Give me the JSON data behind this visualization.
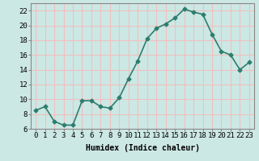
{
  "x": [
    0,
    1,
    2,
    3,
    4,
    5,
    6,
    7,
    8,
    9,
    10,
    11,
    12,
    13,
    14,
    15,
    16,
    17,
    18,
    19,
    20,
    21,
    22,
    23
  ],
  "y": [
    8.5,
    9.0,
    7.0,
    6.5,
    6.5,
    9.8,
    9.8,
    9.0,
    8.8,
    10.2,
    12.8,
    15.2,
    18.2,
    19.6,
    20.2,
    21.0,
    22.2,
    21.8,
    21.5,
    18.8,
    16.5,
    16.0,
    14.0,
    15.0
  ],
  "line_color": "#2e7d6e",
  "marker": "D",
  "marker_size": 2.5,
  "bg_color": "#cce8e4",
  "grid_color": "#f0c0c0",
  "xlabel": "Humidex (Indice chaleur)",
  "xlim": [
    -0.5,
    23.5
  ],
  "ylim": [
    6,
    23
  ],
  "yticks": [
    6,
    8,
    10,
    12,
    14,
    16,
    18,
    20,
    22
  ],
  "xticks": [
    0,
    1,
    2,
    3,
    4,
    5,
    6,
    7,
    8,
    9,
    10,
    11,
    12,
    13,
    14,
    15,
    16,
    17,
    18,
    19,
    20,
    21,
    22,
    23
  ],
  "xlabel_fontsize": 7,
  "tick_fontsize": 6.5,
  "spine_color": "#888888",
  "linewidth": 1.2
}
